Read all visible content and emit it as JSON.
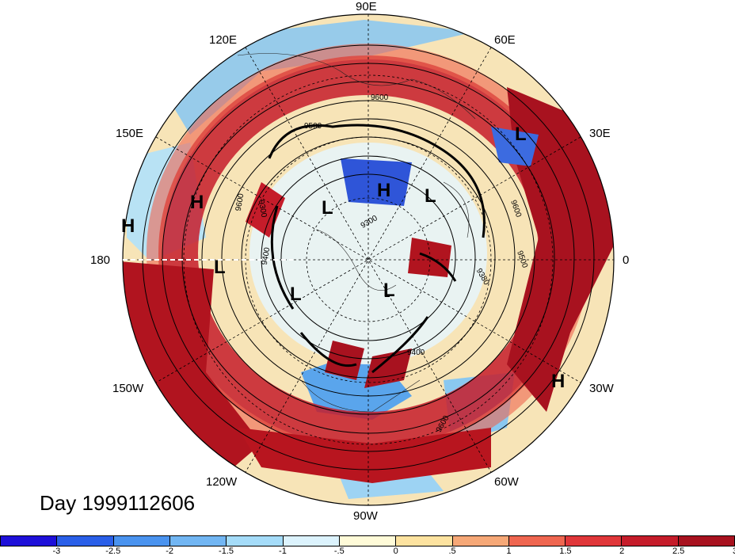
{
  "map": {
    "longitude_labels": {
      "e90": "90E",
      "e60": "60E",
      "e30": "30E",
      "zero": "0",
      "w30": "30W",
      "w60": "60W",
      "w90": "90W",
      "w120": "120W",
      "w150": "150W",
      "d180": "180",
      "e150": "150E",
      "e120": "120E"
    },
    "pressure_centers": [
      {
        "label": "L"
      },
      {
        "label": "H"
      },
      {
        "label": "H"
      },
      {
        "label": "H"
      },
      {
        "label": "L"
      },
      {
        "label": "L"
      },
      {
        "label": "L"
      },
      {
        "label": "L"
      },
      {
        "label": "L"
      },
      {
        "label": "L"
      },
      {
        "label": "H"
      }
    ],
    "contour_labels": [
      "9600",
      "9500",
      "9400",
      "9300",
      "9600",
      "9500",
      "9380",
      "9400",
      "9600",
      "9600",
      "9300"
    ],
    "date_label": "Day 1999112606"
  },
  "colorbar": {
    "colors": [
      "#1e10d9",
      "#2a5fe8",
      "#4a93ef",
      "#72b6f3",
      "#a5dcf9",
      "#dcf3fd",
      "#fffbd8",
      "#fde3a0",
      "#f6a877",
      "#ef6650",
      "#e0373a",
      "#c51c2a",
      "#a8121f"
    ],
    "ticks": [
      "-3",
      "-2.5",
      "-2",
      "-1.5",
      "-1",
      "-.5",
      "0",
      ".5",
      "1",
      "1.5",
      "2",
      "2.5",
      "3"
    ]
  }
}
